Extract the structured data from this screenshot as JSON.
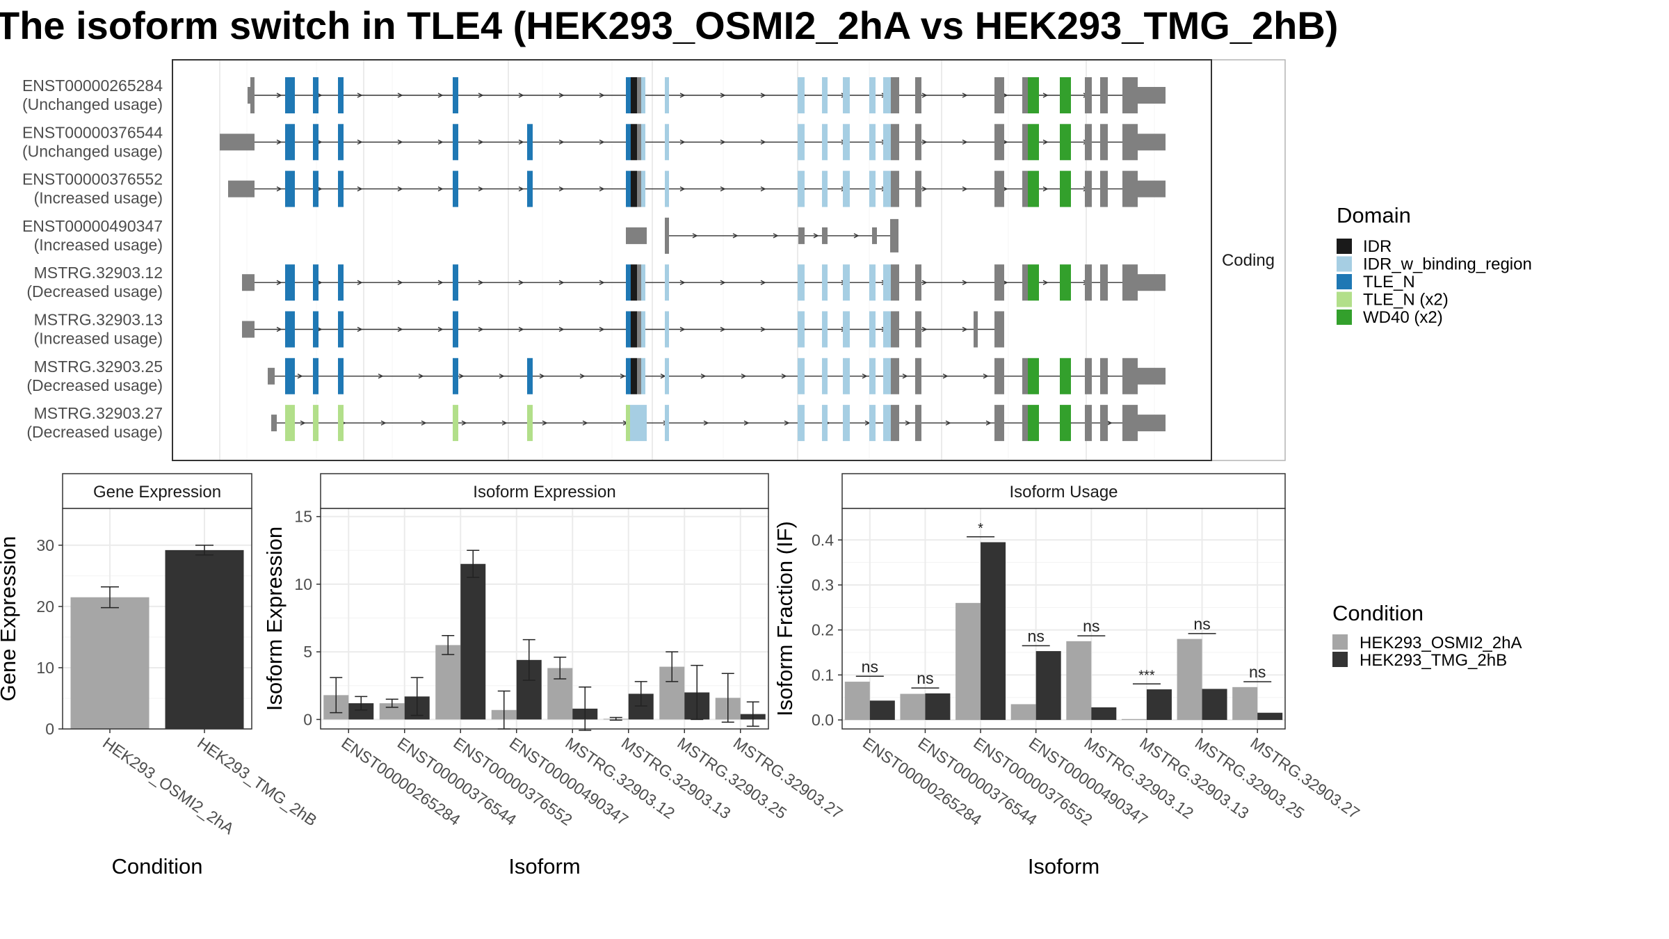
{
  "title": "The isoform switch in TLE4 (HEK293_OSMI2_2hA vs HEK293_TMG_2hB)",
  "colors": {
    "IDR": "#1a1a1a",
    "IDR_w_binding_region": "#a6cee3",
    "TLE_N": "#1f78b4",
    "TLE_N (x2)": "#b2df8a",
    "WD40 (x2)": "#33a02c",
    "noncoding": "#808080",
    "condA": "#a6a6a6",
    "condB": "#333333",
    "panel_border": "#4d4d4d",
    "grid": "#ebebeb",
    "strip_border": "#b3b3b3"
  },
  "structure_panel": {
    "facet_label": "Coding",
    "transcripts": [
      {
        "id": "ENST00000265284",
        "usage": "(Unchanged usage)"
      },
      {
        "id": "ENST00000376544",
        "usage": "(Unchanged usage)"
      },
      {
        "id": "ENST00000376552",
        "usage": "(Increased usage)"
      },
      {
        "id": "ENST00000490347",
        "usage": "(Increased usage)"
      },
      {
        "id": "MSTRG.32903.12",
        "usage": "(Decreased usage)"
      },
      {
        "id": "MSTRG.32903.13",
        "usage": "(Increased usage)"
      },
      {
        "id": "MSTRG.32903.25",
        "usage": "(Decreased usage)"
      },
      {
        "id": "MSTRG.32903.27",
        "usage": "(Decreased usage)"
      }
    ]
  },
  "domain_legend": {
    "title": "Domain",
    "items": [
      "IDR",
      "IDR_w_binding_region",
      "TLE_N",
      "TLE_N (x2)",
      "WD40 (x2)"
    ]
  },
  "condition_legend": {
    "title": "Condition",
    "items": [
      "HEK293_OSMI2_2hA",
      "HEK293_TMG_2hB"
    ]
  },
  "chart_data": [
    {
      "type": "bar",
      "title": "Gene Expression",
      "xlabel": "Condition",
      "ylabel": "Gene Expression",
      "ylim": [
        0,
        36
      ],
      "yticks": [
        0,
        10,
        20,
        30
      ],
      "categories": [
        "HEK293_OSMI2_2hA",
        "HEK293_TMG_2hB"
      ],
      "values": [
        21.5,
        29.2
      ],
      "errors": [
        1.7,
        0.8
      ]
    },
    {
      "type": "bar",
      "title": "Isoform Expression",
      "xlabel": "Isoform",
      "ylabel": "Isoform Expression",
      "ylim": [
        -0.7,
        15.6
      ],
      "yticks": [
        0,
        5,
        10,
        15
      ],
      "categories": [
        "ENST00000265284",
        "ENST00000376544",
        "ENST00000376552",
        "ENST00000490347",
        "MSTRG.32903.12",
        "MSTRG.32903.13",
        "MSTRG.32903.25",
        "MSTRG.32903.27"
      ],
      "series": [
        {
          "name": "HEK293_OSMI2_2hA",
          "values": [
            1.8,
            1.2,
            5.5,
            0.7,
            3.8,
            0.05,
            3.9,
            1.6
          ],
          "errors": [
            1.3,
            0.3,
            0.7,
            1.4,
            0.8,
            0.1,
            1.1,
            1.8
          ]
        },
        {
          "name": "HEK293_TMG_2hB",
          "values": [
            1.2,
            1.7,
            11.5,
            4.4,
            0.8,
            1.9,
            2.0,
            0.4
          ],
          "errors": [
            0.5,
            1.4,
            1.0,
            1.5,
            1.6,
            0.9,
            2.0,
            0.9
          ]
        }
      ]
    },
    {
      "type": "bar",
      "title": "Isoform Usage",
      "xlabel": "Isoform",
      "ylabel": "Isoform Fraction (IF)",
      "ylim": [
        -0.02,
        0.47
      ],
      "yticks": [
        0.0,
        0.1,
        0.2,
        0.3,
        0.4
      ],
      "categories": [
        "ENST00000265284",
        "ENST00000376544",
        "ENST00000376552",
        "ENST00000490347",
        "MSTRG.32903.12",
        "MSTRG.32903.13",
        "MSTRG.32903.25",
        "MSTRG.32903.27"
      ],
      "series": [
        {
          "name": "HEK293_OSMI2_2hA",
          "values": [
            0.085,
            0.058,
            0.26,
            0.035,
            0.175,
            0.002,
            0.18,
            0.073
          ]
        },
        {
          "name": "HEK293_TMG_2hB",
          "values": [
            0.043,
            0.059,
            0.395,
            0.153,
            0.028,
            0.068,
            0.069,
            0.016
          ]
        }
      ],
      "significance": [
        "ns",
        "ns",
        "*",
        "ns",
        "ns",
        "***",
        "ns",
        "ns"
      ]
    }
  ]
}
